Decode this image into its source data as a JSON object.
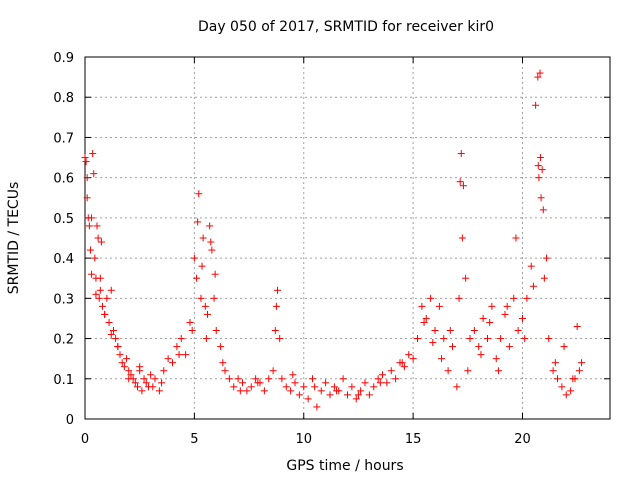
{
  "chart_data": {
    "type": "scatter",
    "title": "Day 050 of 2017, SRMTID for receiver kir0",
    "xlabel": "GPS time / hours",
    "ylabel": "SRMTID / TECUs",
    "xlim": [
      0,
      24
    ],
    "ylim": [
      0,
      0.9
    ],
    "xticks": [
      0,
      5,
      10,
      15,
      20
    ],
    "xtick_labels": [
      "0",
      "5",
      "10",
      "15",
      "20"
    ],
    "yticks": [
      0,
      0.1,
      0.2,
      0.3,
      0.4,
      0.5,
      0.6,
      0.7,
      0.8,
      0.9
    ],
    "ytick_labels": [
      "0",
      "0.1",
      "0.2",
      "0.3",
      "0.4",
      "0.5",
      "0.6",
      "0.7",
      "0.8",
      "0.9"
    ],
    "grid": true,
    "marker": "+",
    "color": "#ff0000",
    "series": [
      {
        "name": "kir0",
        "x": [
          0.0,
          0.05,
          0.1,
          0.15,
          0.2,
          0.25,
          0.3,
          0.35,
          0.4,
          0.45,
          0.5,
          0.55,
          0.6,
          0.65,
          0.7,
          0.75,
          0.8,
          0.9,
          1.0,
          1.1,
          1.2,
          1.3,
          1.4,
          1.5,
          1.6,
          1.7,
          1.8,
          1.9,
          2.0,
          2.1,
          2.2,
          2.3,
          2.4,
          2.5,
          2.6,
          2.7,
          2.8,
          2.9,
          3.0,
          3.2,
          3.4,
          3.6,
          3.8,
          4.0,
          4.2,
          4.4,
          4.6,
          4.8,
          5.0,
          5.1,
          5.2,
          5.3,
          5.4,
          5.5,
          5.6,
          5.7,
          5.8,
          5.9,
          6.0,
          6.2,
          6.4,
          6.6,
          6.8,
          7.0,
          7.2,
          7.4,
          7.6,
          7.8,
          8.0,
          8.2,
          8.4,
          8.6,
          8.7,
          8.8,
          8.9,
          9.0,
          9.2,
          9.4,
          9.6,
          9.8,
          10.0,
          10.2,
          10.4,
          10.6,
          10.8,
          11.0,
          11.2,
          11.4,
          11.6,
          11.8,
          12.0,
          12.2,
          12.4,
          12.6,
          12.8,
          13.0,
          13.2,
          13.4,
          13.6,
          13.8,
          14.0,
          14.2,
          14.4,
          14.6,
          14.8,
          15.0,
          15.2,
          15.4,
          15.6,
          15.8,
          16.0,
          16.2,
          16.4,
          16.6,
          16.8,
          17.0,
          17.1,
          17.2,
          17.3,
          17.4,
          17.6,
          17.8,
          18.0,
          18.2,
          18.4,
          18.6,
          18.8,
          19.0,
          19.2,
          19.4,
          19.6,
          19.8,
          20.0,
          20.2,
          20.4,
          20.6,
          20.7,
          20.75,
          20.8,
          20.85,
          20.9,
          21.0,
          21.2,
          21.4,
          21.6,
          21.8,
          22.0,
          22.2,
          22.4,
          22.6,
          22.7,
          0.1,
          0.3,
          0.5,
          0.7,
          0.9,
          1.2,
          1.5,
          2.0,
          2.5,
          3.1,
          3.5,
          4.3,
          4.9,
          5.15,
          5.35,
          5.55,
          5.75,
          5.95,
          6.3,
          7.1,
          7.9,
          8.75,
          9.5,
          10.5,
          11.5,
          12.5,
          13.5,
          14.5,
          15.5,
          15.9,
          16.3,
          16.7,
          17.15,
          17.25,
          17.5,
          18.1,
          18.5,
          18.9,
          19.3,
          19.7,
          20.1,
          20.5,
          20.72,
          20.82,
          20.95,
          21.1,
          21.5,
          21.9,
          22.3,
          22.5
        ],
        "y": [
          0.65,
          0.64,
          0.6,
          0.5,
          0.48,
          0.42,
          0.5,
          0.66,
          0.61,
          0.4,
          0.35,
          0.48,
          0.45,
          0.3,
          0.32,
          0.44,
          0.28,
          0.26,
          0.3,
          0.24,
          0.32,
          0.22,
          0.2,
          0.18,
          0.16,
          0.14,
          0.13,
          0.15,
          0.12,
          0.11,
          0.1,
          0.09,
          0.08,
          0.12,
          0.07,
          0.1,
          0.09,
          0.08,
          0.11,
          0.1,
          0.07,
          0.12,
          0.15,
          0.14,
          0.18,
          0.2,
          0.16,
          0.24,
          0.4,
          0.35,
          0.56,
          0.3,
          0.45,
          0.28,
          0.26,
          0.48,
          0.42,
          0.3,
          0.22,
          0.18,
          0.12,
          0.1,
          0.08,
          0.1,
          0.09,
          0.07,
          0.08,
          0.1,
          0.09,
          0.07,
          0.1,
          0.12,
          0.22,
          0.32,
          0.2,
          0.1,
          0.08,
          0.07,
          0.09,
          0.06,
          0.08,
          0.05,
          0.1,
          0.03,
          0.07,
          0.09,
          0.06,
          0.08,
          0.07,
          0.1,
          0.06,
          0.08,
          0.05,
          0.07,
          0.09,
          0.06,
          0.08,
          0.1,
          0.11,
          0.09,
          0.12,
          0.1,
          0.14,
          0.13,
          0.16,
          0.15,
          0.2,
          0.28,
          0.25,
          0.3,
          0.22,
          0.28,
          0.2,
          0.12,
          0.18,
          0.08,
          0.3,
          0.66,
          0.58,
          0.35,
          0.2,
          0.22,
          0.18,
          0.25,
          0.2,
          0.28,
          0.15,
          0.2,
          0.26,
          0.18,
          0.3,
          0.22,
          0.25,
          0.3,
          0.38,
          0.78,
          0.85,
          0.6,
          0.86,
          0.55,
          0.62,
          0.35,
          0.2,
          0.12,
          0.1,
          0.08,
          0.06,
          0.07,
          0.1,
          0.12,
          0.14,
          0.55,
          0.36,
          0.31,
          0.35,
          0.26,
          0.21,
          0.18,
          0.1,
          0.13,
          0.08,
          0.09,
          0.16,
          0.22,
          0.49,
          0.38,
          0.2,
          0.44,
          0.36,
          0.14,
          0.07,
          0.09,
          0.28,
          0.11,
          0.08,
          0.07,
          0.06,
          0.09,
          0.14,
          0.24,
          0.19,
          0.15,
          0.22,
          0.59,
          0.45,
          0.12,
          0.16,
          0.24,
          0.12,
          0.28,
          0.45,
          0.2,
          0.33,
          0.63,
          0.65,
          0.52,
          0.4,
          0.14,
          0.18,
          0.1,
          0.23
        ]
      }
    ]
  }
}
